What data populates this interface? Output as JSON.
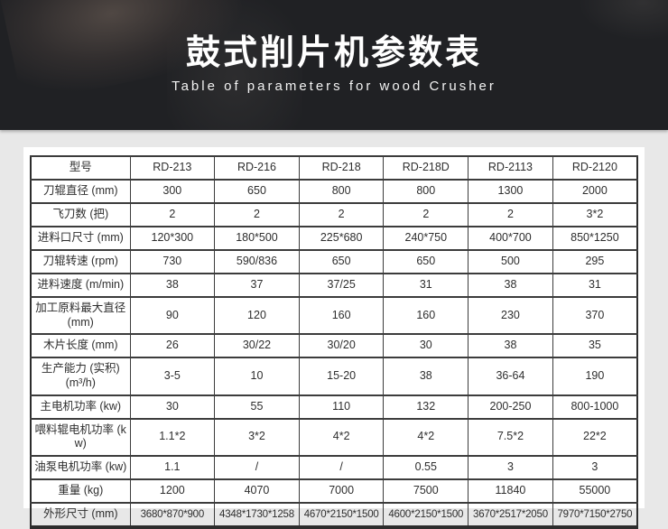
{
  "colors": {
    "page_bg": "#e8e8e8",
    "banner_bg": "#202124",
    "card_bg": "#ffffff",
    "table_border": "#3c3c3c",
    "text": "#2e2e2e",
    "banner_text": "#ffffff"
  },
  "header": {
    "title": "鼓式削片机参数表",
    "subtitle": "Table of parameters for wood Crusher"
  },
  "table": {
    "columns": [
      "型号",
      "RD-213",
      "RD-216",
      "RD-218",
      "RD-218D",
      "RD-2113",
      "RD-2120"
    ],
    "rows": [
      {
        "label": "刀辊直径 (mm)",
        "values": [
          "300",
          "650",
          "800",
          "800",
          "1300",
          "2000"
        ]
      },
      {
        "label": "飞刀数 (把)",
        "values": [
          "2",
          "2",
          "2",
          "2",
          "2",
          "3*2"
        ]
      },
      {
        "label": "进料口尺寸 (mm)",
        "values": [
          "120*300",
          "180*500",
          "225*680",
          "240*750",
          "400*700",
          "850*1250"
        ]
      },
      {
        "label": "刀辊转速 (rpm)",
        "values": [
          "730",
          "590/836",
          "650",
          "650",
          "500",
          "295"
        ]
      },
      {
        "label": "进料速度 (m/min)",
        "values": [
          "38",
          "37",
          "37/25",
          "31",
          "38",
          "31"
        ]
      },
      {
        "label": "加工原料最大直径 (mm)",
        "values": [
          "90",
          "120",
          "160",
          "160",
          "230",
          "370"
        ],
        "tall": true
      },
      {
        "label": "木片长度 (mm)",
        "values": [
          "26",
          "30/22",
          "30/20",
          "30",
          "38",
          "35"
        ]
      },
      {
        "label": "生产能力 (实积) (m³/h)",
        "values": [
          "3-5",
          "10",
          "15-20",
          "38",
          "36-64",
          "190"
        ],
        "tall": true
      },
      {
        "label": "主电机功率 (kw)",
        "values": [
          "30",
          "55",
          "110",
          "132",
          "200-250",
          "800-1000"
        ]
      },
      {
        "label": "喂料辊电机功率 (kw)",
        "values": [
          "1.1*2",
          "3*2",
          "4*2",
          "4*2",
          "7.5*2",
          "22*2"
        ],
        "tall": true
      },
      {
        "label": "油泵电机功率 (kw)",
        "values": [
          "1.1",
          "/",
          "/",
          "0.55",
          "3",
          "3"
        ]
      },
      {
        "label": "重量 (kg)",
        "values": [
          "1200",
          "4070",
          "7000",
          "7500",
          "11840",
          "55000"
        ]
      },
      {
        "label": "外形尺寸 (mm)",
        "values": [
          "3680*870*900",
          "4348*1730*1258",
          "4670*2150*1500",
          "4600*2150*1500",
          "3670*2517*2050",
          "7970*7150*2750"
        ],
        "last": true
      }
    ]
  }
}
